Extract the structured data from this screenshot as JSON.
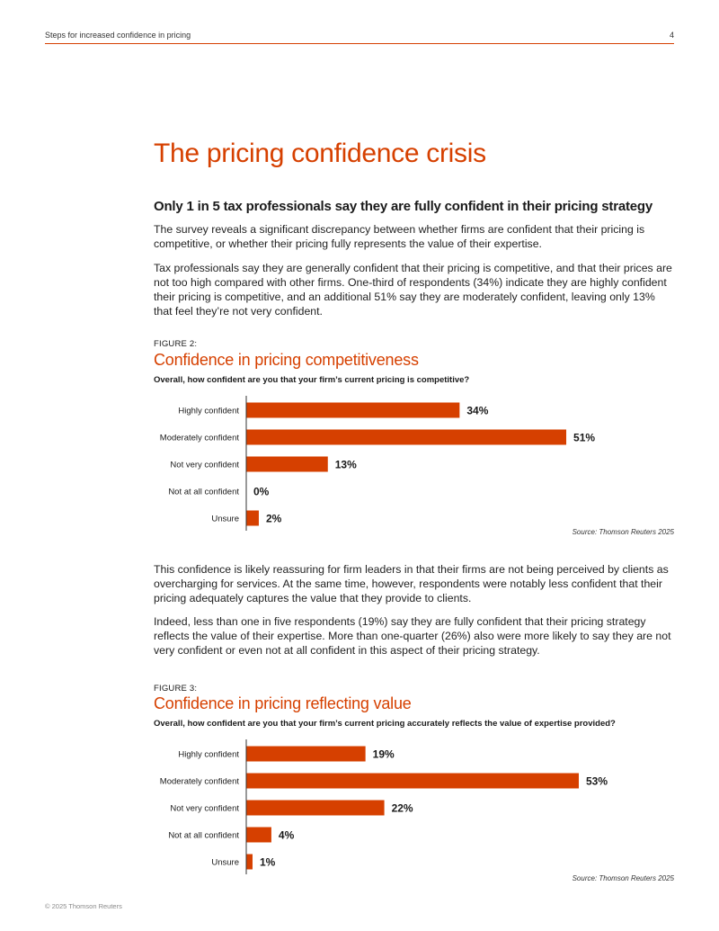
{
  "header": {
    "running_title": "Steps for increased confidence in pricing",
    "page_number": "4"
  },
  "page_title": "The pricing confidence crisis",
  "section_heading": "Only 1 in 5 tax professionals say they are fully confident in their pricing strategy",
  "paragraphs": {
    "p1": "The survey reveals a significant discrepancy between whether firms are confident that their pricing is competitive, or whether their pricing fully represents the value of their expertise.",
    "p2": "Tax professionals say they are generally confident that their pricing is competitive, and that their prices are not too high compared with other firms. One-third of respondents (34%) indicate they are highly confident their pricing is competitive, and an additional 51% say they are moderately confident, leaving only 13% that feel they’re not very confident.",
    "p3": "This confidence is likely reassuring for firm leaders in that their firms are not being perceived by clients as overcharging for services. At the same time, however, respondents were notably less confident that their pricing adequately captures the value that they provide to clients.",
    "p4": "Indeed, less than one in five respondents (19%) say they are fully confident that their pricing strategy reflects the value of their expertise. More than one-quarter (26%) also were more likely to say they are not very confident or even not at all confident in this aspect of their pricing strategy."
  },
  "figure2": {
    "label": "FIGURE 2:",
    "title": "Confidence in pricing competitiveness",
    "question": "Overall, how confident are you that your firm’s current pricing is competitive?",
    "source": "Source: Thomson Reuters 2025"
  },
  "figure3": {
    "label": "FIGURE 3:",
    "title": "Confidence in pricing reflecting value",
    "question": "Overall, how confident are you that your firm’s current pricing accurately reflects the value of expertise provided?",
    "source": "Source: Thomson Reuters 2025"
  },
  "chart_data": [
    {
      "type": "bar",
      "orientation": "horizontal",
      "title": "Confidence in pricing competitiveness",
      "categories": [
        "Highly confident",
        "Moderately confident",
        "Not very confident",
        "Not at all confident",
        "Unsure"
      ],
      "values": [
        34,
        51,
        13,
        0,
        2
      ],
      "value_labels": [
        "34%",
        "51%",
        "13%",
        "0%",
        "2%"
      ],
      "unit": "%",
      "xlim": [
        0,
        53
      ],
      "grid": false,
      "bar_color": "#d64000"
    },
    {
      "type": "bar",
      "orientation": "horizontal",
      "title": "Confidence in pricing reflecting value",
      "categories": [
        "Highly confident",
        "Moderately confident",
        "Not very confident",
        "Not at all confident",
        "Unsure"
      ],
      "values": [
        19,
        53,
        22,
        4,
        1
      ],
      "value_labels": [
        "19%",
        "53%",
        "22%",
        "4%",
        "1%"
      ],
      "unit": "%",
      "xlim": [
        0,
        53
      ],
      "grid": false,
      "bar_color": "#d64000"
    }
  ],
  "footer": {
    "copyright": "© 2025 Thomson Reuters"
  }
}
